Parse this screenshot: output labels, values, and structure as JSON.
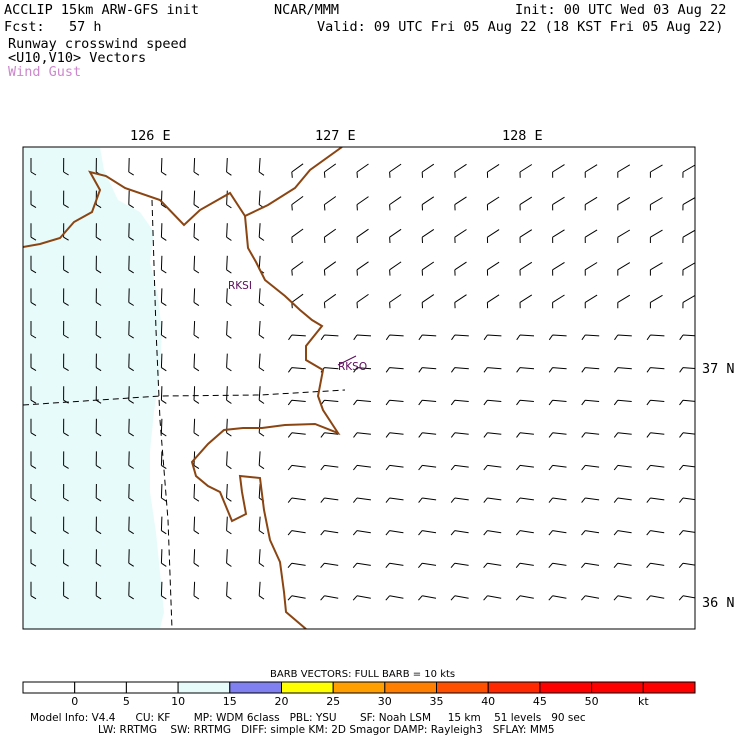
{
  "header": {
    "title": "ACCLIP 15km ARW-GFS init",
    "center": "NCAR/MMM",
    "init": "Init: 00 UTC Wed 03 Aug 22",
    "fcst": "Fcst:   57 h",
    "valid": "Valid: 09 UTC Fri 05 Aug 22 (18 KST Fri 05 Aug 22)",
    "field1": "Runway crosswind speed",
    "field2": "<U10,V10> Vectors",
    "field3": "Wind Gust",
    "field3_color": "#cc88cc"
  },
  "map": {
    "lon_labels": [
      "126 E",
      "127 E",
      "128 E"
    ],
    "lat_labels": [
      "37 N",
      "36 N"
    ],
    "stations": [
      {
        "id": "RKSI",
        "label": "RKSI"
      },
      {
        "id": "RKSO",
        "label": "RKSO"
      }
    ],
    "shading_color": "#e8fbfb",
    "coast_color": "#8b4513",
    "station_color": "#5a0a5a"
  },
  "colorbar": {
    "title": "BARB VECTORS:  FULL BARB = 10 kts",
    "ticks": [
      "0",
      "5",
      "10",
      "15",
      "20",
      "25",
      "30",
      "35",
      "40",
      "45",
      "50",
      "kt"
    ],
    "colors": [
      "#ffffff",
      "#ffffff",
      "#ffffff",
      "#e8fbfb",
      "#8080f0",
      "#ffff00",
      "#ffa000",
      "#ff8000",
      "#ff5000",
      "#ff2800",
      "#ff0000",
      "#ff0000",
      "#ff0000"
    ]
  },
  "footer": {
    "line1": "Model Info: V4.4      CU: KF       MP: WDM 6class   PBL: YSU       SF: Noah LSM     15 km    51 levels   90 sec",
    "line2": "LW: RRTMG    SW: RRTMG   DIFF: simple KM: 2D Smagor DAMP: Rayleigh3   SFLAY: MM5"
  }
}
